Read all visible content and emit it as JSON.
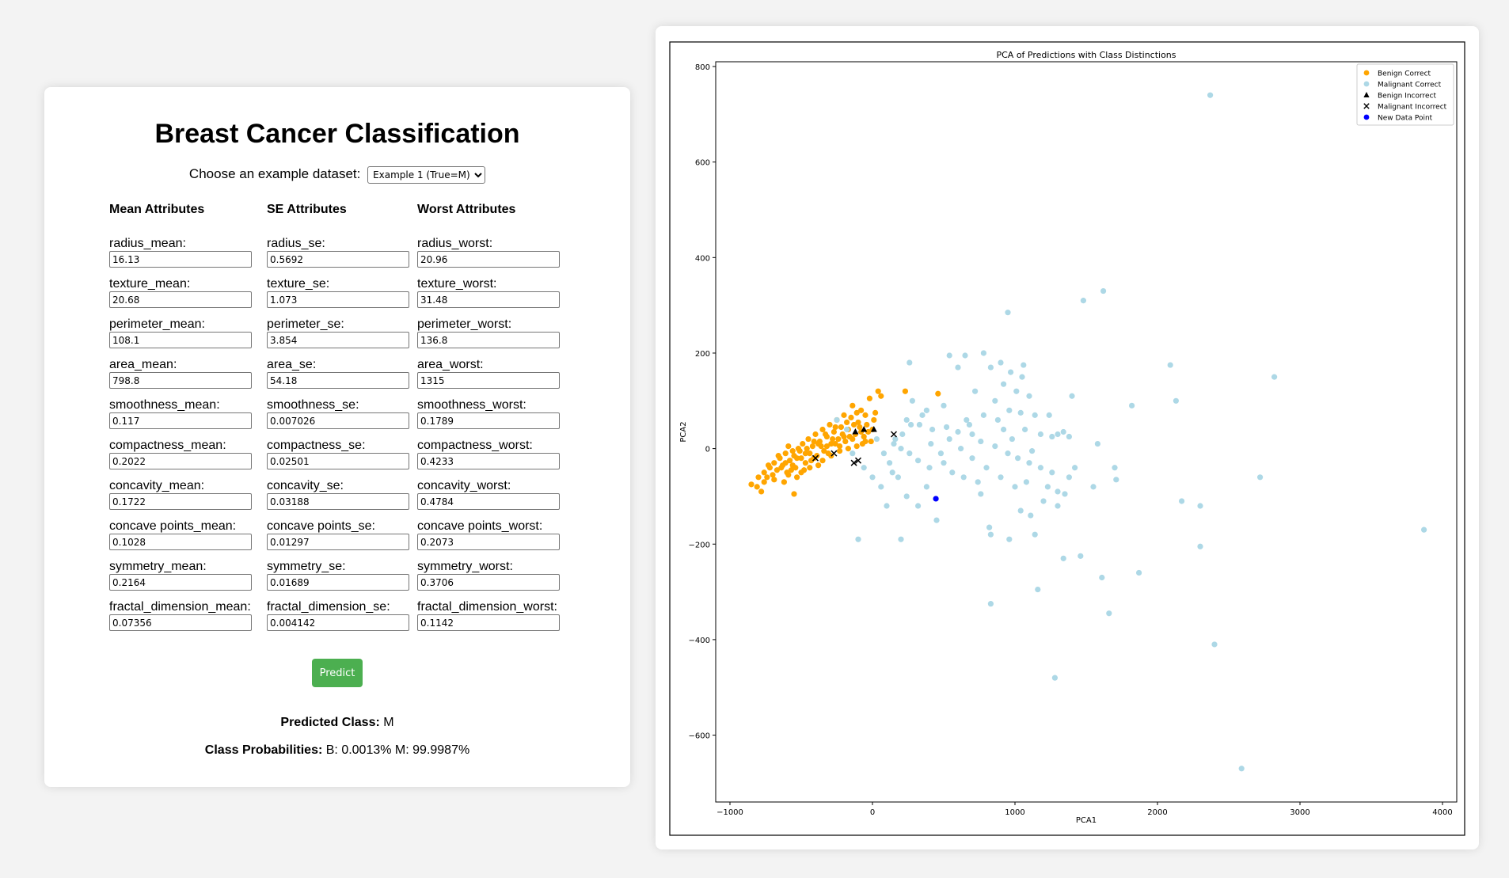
{
  "form": {
    "title": "Breast Cancer Classification",
    "choose_label": "Choose an example dataset:",
    "selected_example": "Example 1 (True=M)",
    "columns": [
      {
        "heading": "Mean Attributes",
        "fields": [
          {
            "label": "radius_mean:",
            "value": "16.13"
          },
          {
            "label": "texture_mean:",
            "value": "20.68"
          },
          {
            "label": "perimeter_mean:",
            "value": "108.1"
          },
          {
            "label": "area_mean:",
            "value": "798.8"
          },
          {
            "label": "smoothness_mean:",
            "value": "0.117"
          },
          {
            "label": "compactness_mean:",
            "value": "0.2022"
          },
          {
            "label": "concavity_mean:",
            "value": "0.1722"
          },
          {
            "label": "concave points_mean:",
            "value": "0.1028"
          },
          {
            "label": "symmetry_mean:",
            "value": "0.2164"
          },
          {
            "label": "fractal_dimension_mean:",
            "value": "0.07356"
          }
        ]
      },
      {
        "heading": "SE Attributes",
        "fields": [
          {
            "label": "radius_se:",
            "value": "0.5692"
          },
          {
            "label": "texture_se:",
            "value": "1.073"
          },
          {
            "label": "perimeter_se:",
            "value": "3.854"
          },
          {
            "label": "area_se:",
            "value": "54.18"
          },
          {
            "label": "smoothness_se:",
            "value": "0.007026"
          },
          {
            "label": "compactness_se:",
            "value": "0.02501"
          },
          {
            "label": "concavity_se:",
            "value": "0.03188"
          },
          {
            "label": "concave points_se:",
            "value": "0.01297"
          },
          {
            "label": "symmetry_se:",
            "value": "0.01689"
          },
          {
            "label": "fractal_dimension_se:",
            "value": "0.004142"
          }
        ]
      },
      {
        "heading": "Worst Attributes",
        "fields": [
          {
            "label": "radius_worst:",
            "value": "20.96"
          },
          {
            "label": "texture_worst:",
            "value": "31.48"
          },
          {
            "label": "perimeter_worst:",
            "value": "136.8"
          },
          {
            "label": "area_worst:",
            "value": "1315"
          },
          {
            "label": "smoothness_worst:",
            "value": "0.1789"
          },
          {
            "label": "compactness_worst:",
            "value": "0.4233"
          },
          {
            "label": "concavity_worst:",
            "value": "0.4784"
          },
          {
            "label": "concave points_worst:",
            "value": "0.2073"
          },
          {
            "label": "symmetry_worst:",
            "value": "0.3706"
          },
          {
            "label": "fractal_dimension_worst:",
            "value": "0.1142"
          }
        ]
      }
    ],
    "predict_label": "Predict",
    "predicted_class_label": "Predicted Class:",
    "predicted_class_value": "M",
    "probabilities_label": "Class Probabilities:",
    "probabilities_value": "B: 0.0013% M: 99.9987%"
  },
  "chart_data": {
    "type": "scatter",
    "title": "PCA of Predictions with Class Distinctions",
    "xlabel": "PCA1",
    "ylabel": "PCA2",
    "xlim": [
      -1100,
      4100
    ],
    "ylim": [
      -740,
      810
    ],
    "xticks": [
      -1000,
      0,
      1000,
      2000,
      3000,
      4000
    ],
    "yticks": [
      800,
      600,
      400,
      200,
      0,
      -200,
      -400,
      -600
    ],
    "legend_position": "top-right",
    "grid": false,
    "series": [
      {
        "name": "Benign Correct",
        "marker": "circle",
        "color": "#ffa500",
        "points": [
          [
            -850,
            -75
          ],
          [
            -810,
            -80
          ],
          [
            -780,
            -90
          ],
          [
            -760,
            -50
          ],
          [
            -740,
            -60
          ],
          [
            -720,
            -40
          ],
          [
            -700,
            -55
          ],
          [
            -690,
            -30
          ],
          [
            -670,
            -45
          ],
          [
            -650,
            -20
          ],
          [
            -630,
            -35
          ],
          [
            -610,
            -10
          ],
          [
            -600,
            -50
          ],
          [
            -580,
            -25
          ],
          [
            -560,
            -5
          ],
          [
            -550,
            -95
          ],
          [
            -540,
            -40
          ],
          [
            -520,
            0
          ],
          [
            -500,
            -20
          ],
          [
            -490,
            10
          ],
          [
            -470,
            -30
          ],
          [
            -450,
            20
          ],
          [
            -440,
            -10
          ],
          [
            -420,
            5
          ],
          [
            -400,
            30
          ],
          [
            -390,
            -15
          ],
          [
            -370,
            15
          ],
          [
            -350,
            40
          ],
          [
            -340,
            -5
          ],
          [
            -320,
            25
          ],
          [
            -300,
            50
          ],
          [
            -290,
            10
          ],
          [
            -270,
            35
          ],
          [
            -250,
            60
          ],
          [
            -240,
            20
          ],
          [
            -220,
            45
          ],
          [
            -200,
            70
          ],
          [
            -190,
            15
          ],
          [
            -170,
            40
          ],
          [
            -150,
            65
          ],
          [
            -140,
            90
          ],
          [
            -120,
            30
          ],
          [
            -100,
            55
          ],
          [
            -80,
            80
          ],
          [
            -60,
            25
          ],
          [
            -40,
            50
          ],
          [
            -20,
            105
          ],
          [
            0,
            40
          ],
          [
            20,
            75
          ],
          [
            40,
            120
          ],
          [
            60,
            110
          ],
          [
            230,
            120
          ],
          [
            460,
            115
          ],
          [
            -800,
            -60
          ],
          [
            -760,
            -70
          ],
          [
            -730,
            -35
          ],
          [
            -690,
            -65
          ],
          [
            -660,
            -15
          ],
          [
            -640,
            -40
          ],
          [
            -610,
            -30
          ],
          [
            -590,
            5
          ],
          [
            -570,
            -45
          ],
          [
            -550,
            -15
          ],
          [
            -530,
            -60
          ],
          [
            -510,
            -5
          ],
          [
            -480,
            -45
          ],
          [
            -460,
            0
          ],
          [
            -430,
            -25
          ],
          [
            -410,
            15
          ],
          [
            -380,
            -35
          ],
          [
            -360,
            5
          ],
          [
            -330,
            30
          ],
          [
            -310,
            -10
          ],
          [
            -280,
            20
          ],
          [
            -260,
            45
          ],
          [
            -230,
            5
          ],
          [
            -210,
            30
          ],
          [
            -180,
            55
          ],
          [
            -160,
            25
          ],
          [
            -130,
            50
          ],
          [
            -110,
            75
          ],
          [
            -90,
            45
          ],
          [
            -70,
            10
          ],
          [
            -50,
            70
          ],
          [
            -30,
            35
          ],
          [
            -10,
            15
          ],
          [
            10,
            60
          ],
          [
            -620,
            -70
          ],
          [
            -590,
            -55
          ],
          [
            -560,
            -35
          ],
          [
            -530,
            -20
          ],
          [
            -500,
            -50
          ],
          [
            -470,
            -10
          ],
          [
            -440,
            -40
          ],
          [
            -410,
            -20
          ],
          [
            -380,
            10
          ],
          [
            -350,
            -25
          ],
          [
            -320,
            5
          ],
          [
            -290,
            -15
          ],
          [
            -260,
            10
          ],
          [
            -230,
            -5
          ],
          [
            -200,
            25
          ],
          [
            -170,
            0
          ],
          [
            -140,
            20
          ],
          [
            -110,
            5
          ],
          [
            -80,
            35
          ],
          [
            -50,
            15
          ]
        ]
      },
      {
        "name": "Malignant Correct",
        "marker": "circle",
        "color": "#add8e6",
        "points": [
          [
            2370,
            740
          ],
          [
            1620,
            330
          ],
          [
            1480,
            310
          ],
          [
            950,
            285
          ],
          [
            650,
            195
          ],
          [
            780,
            200
          ],
          [
            900,
            180
          ],
          [
            1060,
            175
          ],
          [
            540,
            195
          ],
          [
            830,
            170
          ],
          [
            970,
            160
          ],
          [
            1050,
            150
          ],
          [
            2090,
            175
          ],
          [
            2820,
            150
          ],
          [
            260,
            180
          ],
          [
            600,
            170
          ],
          [
            720,
            120
          ],
          [
            920,
            135
          ],
          [
            1100,
            110
          ],
          [
            1400,
            110
          ],
          [
            2130,
            100
          ],
          [
            1820,
            90
          ],
          [
            280,
            100
          ],
          [
            380,
            80
          ],
          [
            500,
            90
          ],
          [
            660,
            60
          ],
          [
            780,
            70
          ],
          [
            880,
            60
          ],
          [
            960,
            80
          ],
          [
            1040,
            75
          ],
          [
            1140,
            70
          ],
          [
            1240,
            70
          ],
          [
            1300,
            30
          ],
          [
            1340,
            35
          ],
          [
            1260,
            25
          ],
          [
            1380,
            25
          ],
          [
            1580,
            10
          ],
          [
            240,
            60
          ],
          [
            330,
            50
          ],
          [
            420,
            40
          ],
          [
            520,
            45
          ],
          [
            600,
            35
          ],
          [
            700,
            30
          ],
          [
            760,
            15
          ],
          [
            860,
            5
          ],
          [
            950,
            -10
          ],
          [
            1020,
            -20
          ],
          [
            1100,
            -30
          ],
          [
            1180,
            -40
          ],
          [
            1260,
            -50
          ],
          [
            1700,
            -40
          ],
          [
            1710,
            -65
          ],
          [
            2720,
            -60
          ],
          [
            160,
            20
          ],
          [
            200,
            0
          ],
          [
            260,
            -10
          ],
          [
            320,
            -25
          ],
          [
            400,
            -40
          ],
          [
            500,
            -30
          ],
          [
            560,
            -50
          ],
          [
            640,
            -60
          ],
          [
            700,
            -20
          ],
          [
            800,
            -40
          ],
          [
            900,
            -60
          ],
          [
            1000,
            -80
          ],
          [
            1080,
            -70
          ],
          [
            1200,
            -110
          ],
          [
            1300,
            -120
          ],
          [
            1380,
            -60
          ],
          [
            1550,
            -80
          ],
          [
            2170,
            -110
          ],
          [
            2300,
            -120
          ],
          [
            120,
            -30
          ],
          [
            180,
            -60
          ],
          [
            240,
            -100
          ],
          [
            320,
            -120
          ],
          [
            380,
            -80
          ],
          [
            450,
            -150
          ],
          [
            1140,
            -180
          ],
          [
            1040,
            -130
          ],
          [
            1110,
            -140
          ],
          [
            820,
            -165
          ],
          [
            830,
            -180
          ],
          [
            760,
            -95
          ],
          [
            960,
            -190
          ],
          [
            -100,
            -190
          ],
          [
            200,
            -190
          ],
          [
            2300,
            -205
          ],
          [
            3870,
            -170
          ],
          [
            1340,
            -230
          ],
          [
            1460,
            -225
          ],
          [
            1610,
            -270
          ],
          [
            1870,
            -260
          ],
          [
            1160,
            -295
          ],
          [
            830,
            -325
          ],
          [
            1660,
            -345
          ],
          [
            2400,
            -410
          ],
          [
            1280,
            -480
          ],
          [
            2590,
            -670
          ],
          [
            -250,
            60
          ],
          [
            -180,
            40
          ],
          [
            -140,
            -10
          ],
          [
            -60,
            -40
          ],
          [
            0,
            -60
          ],
          [
            60,
            -80
          ],
          [
            100,
            -120
          ],
          [
            140,
            -50
          ],
          [
            30,
            20
          ],
          [
            80,
            -10
          ],
          [
            150,
            10
          ],
          [
            210,
            30
          ],
          [
            270,
            50
          ],
          [
            350,
            70
          ],
          [
            410,
            10
          ],
          [
            480,
            -10
          ],
          [
            540,
            20
          ],
          [
            620,
            0
          ],
          [
            680,
            50
          ],
          [
            740,
            -70
          ],
          [
            860,
            100
          ],
          [
            920,
            40
          ],
          [
            980,
            20
          ],
          [
            1010,
            120
          ],
          [
            1070,
            40
          ],
          [
            1120,
            -5
          ],
          [
            1180,
            30
          ],
          [
            1230,
            -80
          ],
          [
            1300,
            -90
          ],
          [
            1350,
            -95
          ],
          [
            1420,
            -40
          ]
        ]
      },
      {
        "name": "Benign Incorrect",
        "marker": "triangle",
        "color": "#000000",
        "points": [
          [
            -120,
            35
          ],
          [
            -60,
            40
          ],
          [
            10,
            40
          ]
        ]
      },
      {
        "name": "Malignant Incorrect",
        "marker": "x",
        "color": "#000000",
        "points": [
          [
            -400,
            -20
          ],
          [
            -270,
            -10
          ],
          [
            -130,
            -30
          ],
          [
            -100,
            -25
          ],
          [
            150,
            30
          ]
        ]
      },
      {
        "name": "New Data Point",
        "marker": "circle",
        "color": "#0000ff",
        "points": [
          [
            445,
            -105
          ]
        ]
      }
    ]
  }
}
